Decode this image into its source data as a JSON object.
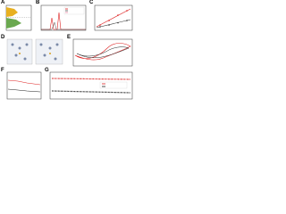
{
  "figure": {
    "panels": [
      {
        "label": "A"
      },
      {
        "label": "B"
      },
      {
        "label": "C"
      },
      {
        "label": "D"
      },
      {
        "label": "E"
      },
      {
        "label": "F"
      },
      {
        "label": "G"
      }
    ]
  }
}
